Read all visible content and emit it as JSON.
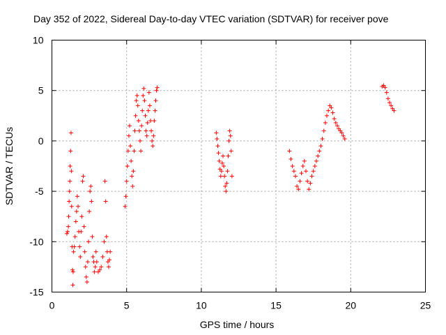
{
  "chart_data": {
    "type": "scatter",
    "title": "Day 352 of 2022, Sidereal Day-to-day VTEC variation (SDTVAR) for receiver pove",
    "xlabel": "GPS time / hours",
    "ylabel": "SDTVAR / TECUs",
    "xlim": [
      0,
      25
    ],
    "ylim": [
      -15,
      10
    ],
    "xticks": [
      0,
      5,
      10,
      15,
      20,
      25
    ],
    "yticks": [
      -15,
      -10,
      -5,
      0,
      5,
      10
    ],
    "xtick_labels": [
      "0",
      "5",
      "10",
      "15",
      "20",
      "25"
    ],
    "ytick_labels": [
      "-15",
      "-10",
      "-5",
      "0",
      "5",
      "10"
    ],
    "grid": true,
    "marker": "+",
    "color": "#ff0000",
    "series": [
      {
        "name": "SDTVAR",
        "x": [
          1.0,
          1.05,
          1.1,
          1.12,
          1.15,
          1.18,
          1.2,
          1.22,
          1.25,
          1.28,
          1.3,
          1.32,
          1.35,
          1.38,
          1.4,
          1.42,
          1.45,
          1.5,
          1.55,
          1.6,
          1.65,
          1.7,
          1.75,
          1.8,
          1.85,
          1.9,
          1.95,
          2.0,
          2.05,
          2.1,
          2.15,
          2.2,
          2.25,
          2.3,
          2.35,
          2.4,
          2.45,
          2.5,
          2.55,
          2.6,
          2.65,
          2.7,
          2.75,
          2.8,
          2.85,
          2.9,
          2.95,
          3.0,
          3.1,
          3.2,
          3.3,
          3.4,
          3.5,
          3.55,
          3.6,
          3.65,
          3.7,
          3.75,
          3.8,
          3.85,
          3.9,
          4.9,
          4.95,
          5.0,
          5.05,
          5.1,
          5.15,
          5.2,
          5.25,
          5.3,
          5.35,
          5.4,
          5.45,
          5.5,
          5.55,
          5.6,
          5.65,
          5.7,
          5.75,
          5.8,
          5.85,
          5.9,
          5.95,
          6.0,
          6.05,
          6.1,
          6.15,
          6.2,
          6.25,
          6.3,
          6.35,
          6.4,
          6.45,
          6.5,
          6.55,
          6.6,
          6.65,
          6.7,
          6.75,
          6.8,
          6.85,
          6.9,
          6.95,
          7.0,
          7.05,
          11.0,
          11.05,
          11.1,
          11.15,
          11.2,
          11.25,
          11.3,
          11.35,
          11.4,
          11.45,
          11.5,
          11.55,
          11.6,
          11.65,
          11.7,
          11.75,
          11.8,
          11.85,
          11.9,
          11.95,
          12.0,
          12.05,
          15.9,
          16.0,
          16.1,
          16.2,
          16.3,
          16.4,
          16.5,
          16.6,
          16.7,
          16.8,
          16.9,
          17.0,
          17.1,
          17.2,
          17.3,
          17.4,
          17.5,
          17.6,
          17.7,
          17.8,
          17.9,
          18.0,
          18.1,
          18.2,
          18.3,
          18.4,
          18.5,
          18.6,
          18.7,
          18.8,
          18.9,
          19.0,
          19.1,
          19.2,
          19.3,
          19.4,
          19.5,
          19.6,
          22.1,
          22.2,
          22.3,
          22.4,
          22.5,
          22.6,
          22.7,
          22.8,
          22.9
        ],
        "y": [
          -9.2,
          -9.0,
          -8.5,
          -7.5,
          -6.0,
          -5.0,
          -4.0,
          -2.5,
          -1.0,
          0.8,
          -3.0,
          -6.5,
          -10.5,
          -12.8,
          -14.3,
          -13.0,
          -11.0,
          -10.5,
          -9.5,
          -8.0,
          -7.0,
          -5.5,
          -6.5,
          -9.0,
          -10.5,
          -11.5,
          -9.0,
          -7.5,
          -4.0,
          -3.5,
          -8.5,
          -11.0,
          -12.5,
          -13.5,
          -14.0,
          -12.0,
          -10.0,
          -7.0,
          -5.0,
          -4.5,
          -6.0,
          -9.5,
          -11.5,
          -12.0,
          -13.0,
          -12.5,
          -11.0,
          -12.0,
          -13.0,
          -12.8,
          -12.5,
          -11.5,
          -10.0,
          -4.0,
          -6.0,
          -9.5,
          -11.0,
          -12.0,
          -12.5,
          -11.8,
          -11.0,
          -6.5,
          -5.5,
          -4.0,
          -2.5,
          -1.0,
          0.5,
          1.5,
          -0.5,
          -2.0,
          -3.5,
          -4.5,
          -3.0,
          -1.0,
          1.0,
          2.5,
          4.0,
          4.5,
          3.5,
          2.0,
          1.0,
          0.0,
          -1.0,
          1.5,
          3.0,
          4.5,
          5.2,
          4.0,
          2.5,
          1.0,
          0.5,
          1.8,
          3.0,
          4.8,
          3.5,
          2.0,
          1.0,
          0.0,
          -0.5,
          0.5,
          2.0,
          3.0,
          4.0,
          5.0,
          5.3,
          0.8,
          0.2,
          -0.5,
          -1.2,
          -2.0,
          -2.8,
          -3.5,
          -3.0,
          -2.2,
          -1.5,
          -2.5,
          -3.5,
          -4.5,
          -5.0,
          -4.2,
          -3.0,
          -1.5,
          0.0,
          1.0,
          0.5,
          -1.0,
          -3.5,
          -1.0,
          -1.8,
          -2.5,
          -3.0,
          -3.5,
          -4.5,
          -4.8,
          -4.0,
          -3.2,
          -2.5,
          -2.0,
          -3.0,
          -4.0,
          -4.8,
          -4.2,
          -3.5,
          -3.0,
          -2.5,
          -2.0,
          -1.5,
          -1.0,
          -0.5,
          0.2,
          1.0,
          1.8,
          2.5,
          3.0,
          3.5,
          3.3,
          2.8,
          2.2,
          1.8,
          1.5,
          1.2,
          1.0,
          0.8,
          0.5,
          0.2,
          5.4,
          5.5,
          5.3,
          4.8,
          4.2,
          3.8,
          3.5,
          3.2,
          3.0
        ]
      }
    ]
  }
}
